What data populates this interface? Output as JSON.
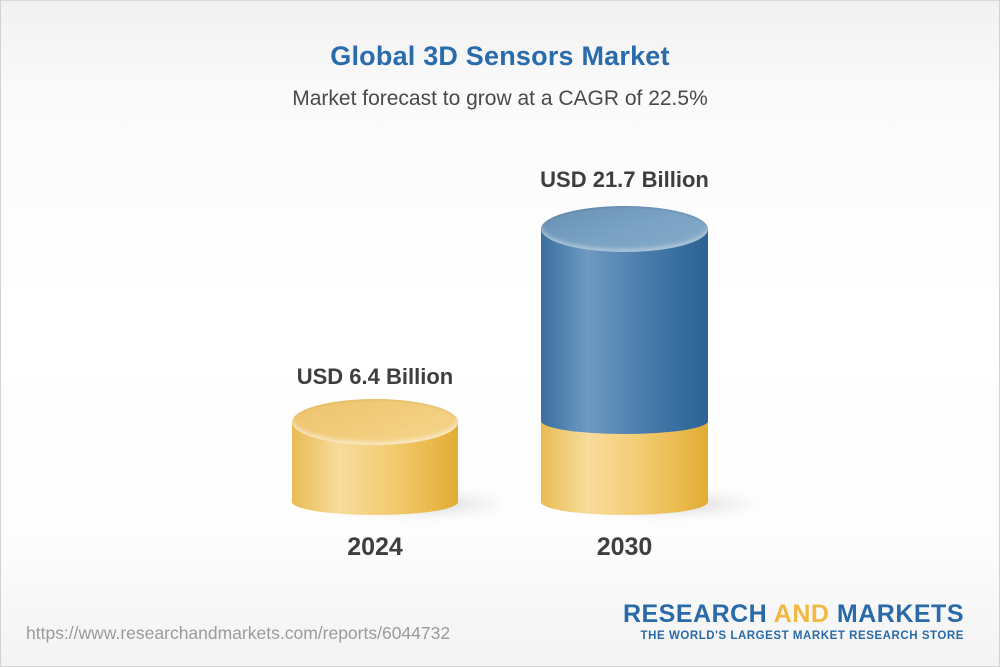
{
  "header": {
    "title": "Global 3D Sensors Market",
    "subtitle": "Market forecast to grow at a CAGR of 22.5%"
  },
  "chart_data": {
    "type": "bar",
    "style": "3d-cylinder",
    "categories": [
      "2024",
      "2030"
    ],
    "values": [
      6.4,
      21.7
    ],
    "unit": "USD Billion",
    "value_labels": [
      "USD 6.4 Billion",
      "USD 21.7 Billion"
    ],
    "cagr_percent": 22.5,
    "title": "Global 3D Sensors Market",
    "xlabel": "",
    "ylabel": "",
    "grid": false,
    "legend": false,
    "colors": {
      "bar_2024": "#f0c468",
      "bar_2030_segment": "#4d7fae",
      "bar_2030_base_segment": "#f0c468",
      "title": "#2a6bab",
      "label_text": "#3e3e3e"
    },
    "notes": "2030 bar shows 2024 value as yellow base segment with blue growth segment above"
  },
  "footer": {
    "source_url": "https://www.researchandmarkets.com/reports/6044732",
    "logo": {
      "word1": "RESEARCH",
      "word2": "AND",
      "word3": "MARKETS",
      "tagline": "THE WORLD'S LARGEST MARKET RESEARCH STORE"
    }
  }
}
